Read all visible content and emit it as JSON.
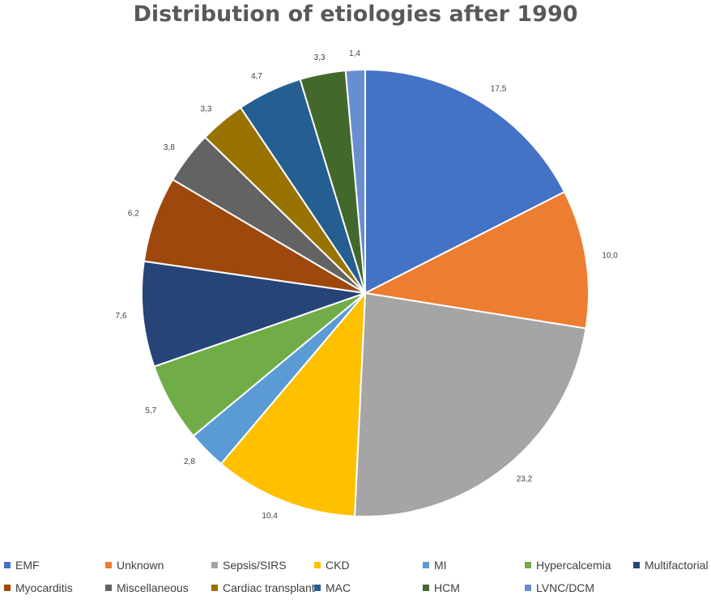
{
  "chart_data": {
    "type": "pie",
    "title": "Distribution of etiologies after 1990",
    "slices": [
      {
        "name": "EMF",
        "value": 17.5,
        "label": "17,5",
        "color": "#4472C4"
      },
      {
        "name": "Unknown",
        "value": 10.0,
        "label": "10,0",
        "color": "#ED7D31"
      },
      {
        "name": "Sepsis/SIRS",
        "value": 23.2,
        "label": "23,2",
        "color": "#A5A5A5"
      },
      {
        "name": "CKD",
        "value": 10.4,
        "label": "10,4",
        "color": "#FFC000"
      },
      {
        "name": "MI",
        "value": 2.8,
        "label": "2,8",
        "color": "#5B9BD5"
      },
      {
        "name": "Hypercalcemia",
        "value": 5.7,
        "label": "5,7",
        "color": "#70AD47"
      },
      {
        "name": "Multifactorial",
        "value": 7.6,
        "label": "7,6",
        "color": "#264478"
      },
      {
        "name": "Myocarditis",
        "value": 6.2,
        "label": "6,2",
        "color": "#9E480E"
      },
      {
        "name": "Miscellaneous",
        "value": 3.8,
        "label": "3,8",
        "color": "#636363"
      },
      {
        "name": "Cardiac transplant",
        "value": 3.3,
        "label": "3,3",
        "color": "#997300"
      },
      {
        "name": "MAC",
        "value": 4.7,
        "label": "4,7",
        "color": "#255E91"
      },
      {
        "name": "HCM",
        "value": 3.3,
        "label": "3,3",
        "color": "#43682B"
      },
      {
        "name": "LVNC/DCM",
        "value": 1.4,
        "label": "1,4",
        "color": "#698ED0"
      }
    ],
    "legend_placement": "bottom"
  }
}
